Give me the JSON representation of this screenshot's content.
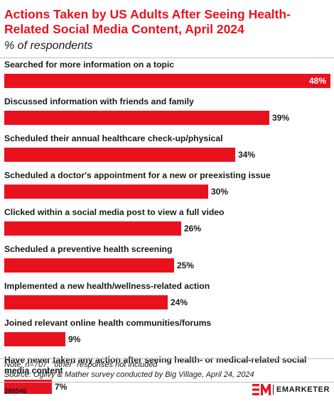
{
  "title": "Actions Taken by US Adults After Seeing Health-Related Social Media Content, April 2024",
  "subtitle": "% of respondents",
  "notes": {
    "line1": "Note: n=707; \"other\" responses not included",
    "line2": "Source: Ogilvy & Mather survey conducted by Big Village, April 24, 2024"
  },
  "footer": {
    "chart_id": "286546",
    "brand": "EMARKETER",
    "colors": {
      "accent": "#e8121e",
      "text": "#1a1a1a"
    }
  },
  "chart_data": {
    "type": "bar",
    "orientation": "horizontal",
    "title": "Actions Taken by US Adults After Seeing Health-Related Social Media Content, April 2024",
    "subtitle": "% of respondents",
    "xlabel": "",
    "ylabel": "",
    "xlim": [
      0,
      48
    ],
    "grid": false,
    "legend": "none",
    "unit": "%",
    "categories": [
      "Searched for more information on a topic",
      "Discussed information with friends and family",
      "Scheduled their annual healthcare check-up/physical",
      "Scheduled a doctor's appointment for a new or preexisting issue",
      "Clicked within a social media post to view a full video",
      "Scheduled a preventive health screening",
      "Implemented a new health/wellness-related action",
      "Joined relevant online health communities/forums",
      "Have never taken any action after seeing health- or medical-related social media content"
    ],
    "values": [
      48,
      39,
      34,
      30,
      26,
      25,
      24,
      9,
      7
    ],
    "labels": [
      "48%",
      "39%",
      "34%",
      "30%",
      "26%",
      "25%",
      "24%",
      "9%",
      "7%"
    ]
  }
}
